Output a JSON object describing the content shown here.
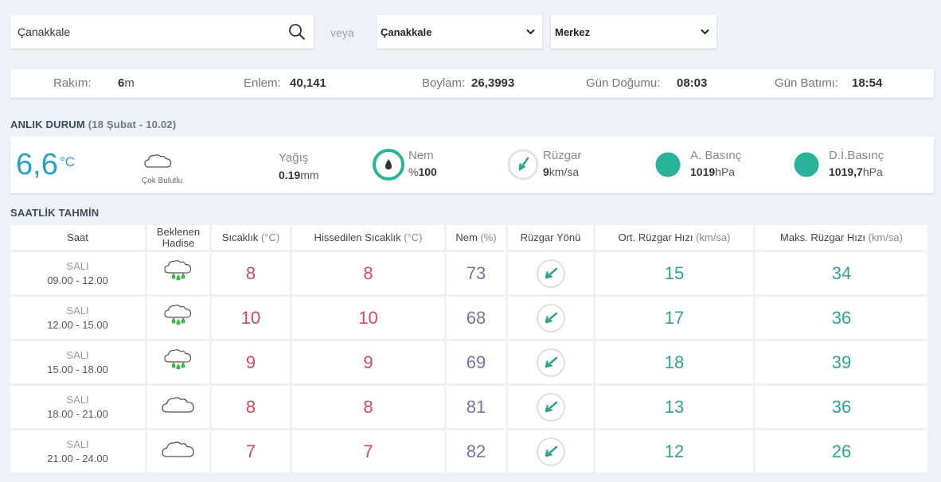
{
  "search": {
    "value": "Çanakkale"
  },
  "or_label": "veya",
  "province_select": {
    "selected": "Çanakkale"
  },
  "district_select": {
    "selected": "Merkez"
  },
  "location_info": {
    "altitude_label": "Rakım:",
    "altitude_value": "6",
    "altitude_unit": "m",
    "latitude_label": "Enlem:",
    "latitude_value": "40,141",
    "longitude_label": "Boylam:",
    "longitude_value": "26,3993",
    "sunrise_label": "Gün Doğumu:",
    "sunrise_value": "08:03",
    "sunset_label": "Gün Batımı:",
    "sunset_value": "18:54"
  },
  "current": {
    "section_title": "ANLIK DURUM",
    "section_subtitle": "(18 Şubat - 10.02)",
    "temperature": "6,6",
    "temperature_unit": "°C",
    "condition": "Çok Bulutlu",
    "condition_icon": "cloud-icon",
    "precip_label": "Yağış",
    "precip_value": "0.19",
    "precip_unit": "mm",
    "humidity_label": "Nem",
    "humidity_prefix": "%",
    "humidity_value": "100",
    "wind_label": "Rüzgar",
    "wind_value": "9",
    "wind_unit": "km/sa",
    "pressure_label": "A. Basınç",
    "pressure_value": "1019",
    "pressure_unit": "hPa",
    "sea_pressure_label": "D.İ.Basınç",
    "sea_pressure_value": "1019,7",
    "sea_pressure_unit": "hPa"
  },
  "forecast": {
    "section_title": "SAATLİK TAHMİN",
    "headers": {
      "time": "Saat",
      "event": "Beklenen Hadise",
      "temp": "Sıcaklık",
      "temp_unit": "(°C)",
      "feels": "Hissedilen Sıcaklık",
      "feels_unit": "(°C)",
      "humidity": "Nem",
      "humidity_unit": "(%)",
      "wind_dir": "Rüzgar Yönü",
      "wind_avg": "Ort. Rüzgar Hızı",
      "wind_avg_unit": "(km/sa)",
      "wind_max": "Maks. Rüzgar Hızı",
      "wind_max_unit": "(km/sa)"
    },
    "rows": [
      {
        "day": "SALI",
        "time": "09.00 - 12.00",
        "icon": "rain-cloud-icon",
        "temp": "8",
        "feels": "8",
        "humidity": "73",
        "wind_avg": "15",
        "wind_max": "34"
      },
      {
        "day": "SALI",
        "time": "12.00 - 15.00",
        "icon": "rain-cloud-icon",
        "temp": "10",
        "feels": "10",
        "humidity": "68",
        "wind_avg": "17",
        "wind_max": "36"
      },
      {
        "day": "SALI",
        "time": "15.00 - 18.00",
        "icon": "rain-cloud-icon",
        "temp": "9",
        "feels": "9",
        "humidity": "69",
        "wind_avg": "18",
        "wind_max": "39"
      },
      {
        "day": "SALI",
        "time": "18.00 - 21.00",
        "icon": "cloud-icon",
        "temp": "8",
        "feels": "8",
        "humidity": "81",
        "wind_avg": "13",
        "wind_max": "36"
      },
      {
        "day": "SALI",
        "time": "21.00 - 24.00",
        "icon": "cloud-icon",
        "temp": "7",
        "feels": "7",
        "humidity": "82",
        "wind_avg": "12",
        "wind_max": "26"
      }
    ]
  },
  "colors": {
    "temp": "#d4485c",
    "humidity": "#7b6fa3",
    "wind": "#2fa48a",
    "current_temp": "#27a3c6",
    "accent": "#2ab39b"
  }
}
